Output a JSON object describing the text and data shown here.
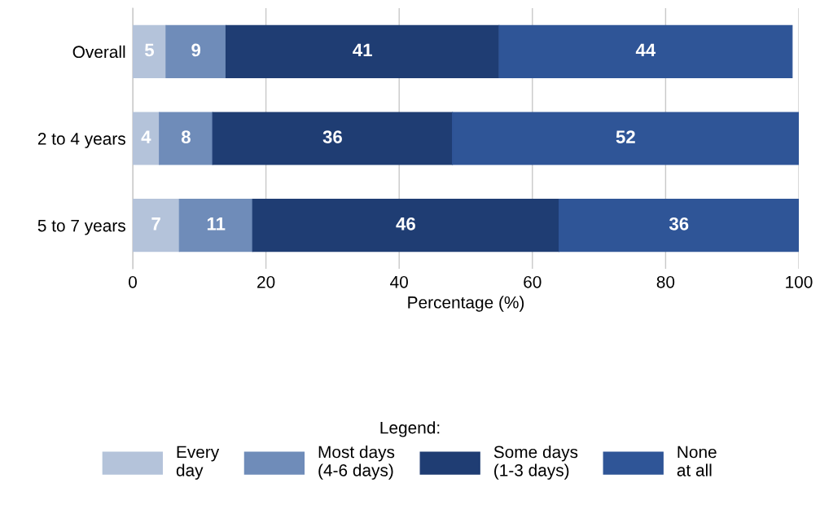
{
  "chart_data": {
    "type": "bar",
    "orientation": "horizontal",
    "stacked": true,
    "categories": [
      "Overall",
      "2 to 4 years",
      "5 to 7 years"
    ],
    "series": [
      {
        "name": "Every\nday",
        "color": "#b4c3da",
        "values": [
          5,
          4,
          7
        ]
      },
      {
        "name": "Most days\n(4-6 days)",
        "color": "#6f8cb9",
        "values": [
          9,
          8,
          11
        ]
      },
      {
        "name": "Some days\n(1-3 days)",
        "color": "#1f3d73",
        "values": [
          41,
          36,
          46
        ]
      },
      {
        "name": "None\nat all",
        "color": "#2f5597",
        "values": [
          44,
          52,
          36
        ]
      }
    ],
    "xlabel": "Percentage (%)",
    "xlim": [
      0,
      100
    ],
    "xticks": [
      0,
      20,
      40,
      60,
      80,
      100
    ],
    "grid": "x",
    "data_labels": true,
    "legend": "bottom",
    "legend_title": "Legend:"
  }
}
